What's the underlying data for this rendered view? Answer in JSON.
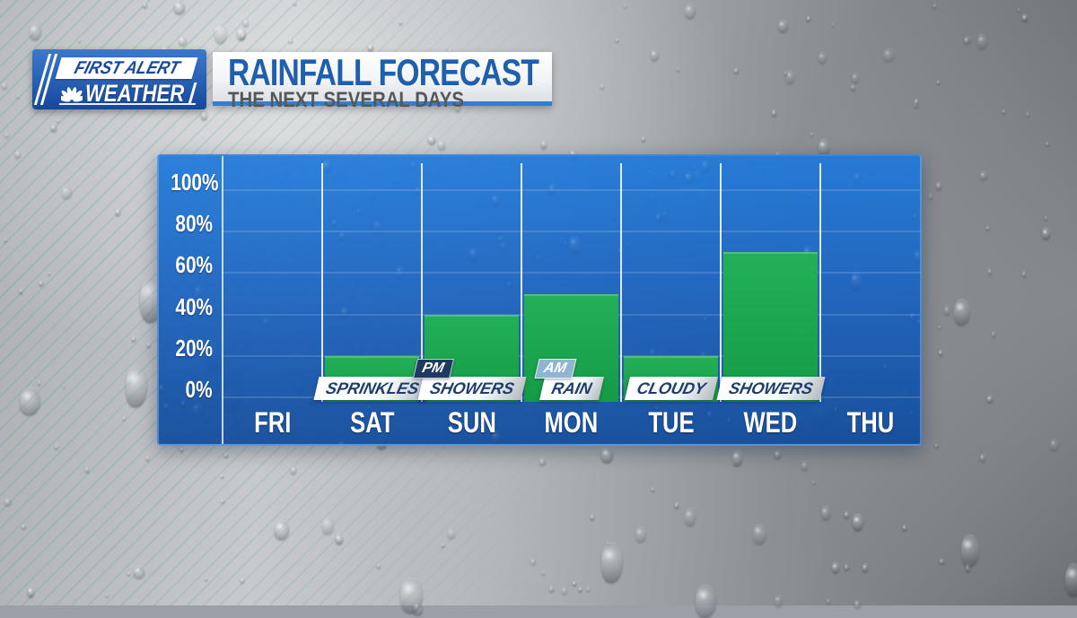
{
  "brand": {
    "line1": "FIRST ALERT",
    "line2": "WEATHER",
    "icon": "nbc-peacock-icon"
  },
  "header": {
    "title": "RAINFALL FORECAST",
    "subtitle": "THE NEXT SEVERAL DAYS"
  },
  "chart_data": {
    "type": "bar",
    "title": "RAINFALL FORECAST",
    "subtitle": "THE NEXT SEVERAL DAYS",
    "units": "%",
    "categories": [
      "FRI",
      "SAT",
      "SUN",
      "MON",
      "TUE",
      "WED",
      "THU"
    ],
    "values": [
      0,
      20,
      40,
      50,
      20,
      70,
      0
    ],
    "condition_labels": [
      "",
      "SPRINKLES",
      "SHOWERS",
      "RAIN",
      "CLOUDY",
      "SHOWERS",
      ""
    ],
    "condition_badges": [
      "",
      "",
      "PM",
      "AM",
      "",
      "",
      ""
    ],
    "y_ticks": [
      "100%",
      "80%",
      "60%",
      "40%",
      "20%",
      "0%"
    ],
    "ylim": [
      0,
      100
    ],
    "grid": true,
    "legend": false,
    "colors": {
      "bar_green_top": "#23b058",
      "bar_green_bottom": "#159b46",
      "panel_top": "#1e79da",
      "panel_bottom": "#124c9c",
      "badge_pm_bg": "#1e3a62",
      "badge_am_bg": "#8fb5d2",
      "band_text": "#1c3e6e",
      "tick_text": "#ffffff"
    }
  },
  "theme": {
    "title_blue": "#1e5fae",
    "subtitle_gray": "#54585c",
    "underline_blue": "#2f7fd9",
    "logo_blue_top": "#3b79cb",
    "logo_blue_bottom": "#16479c"
  }
}
